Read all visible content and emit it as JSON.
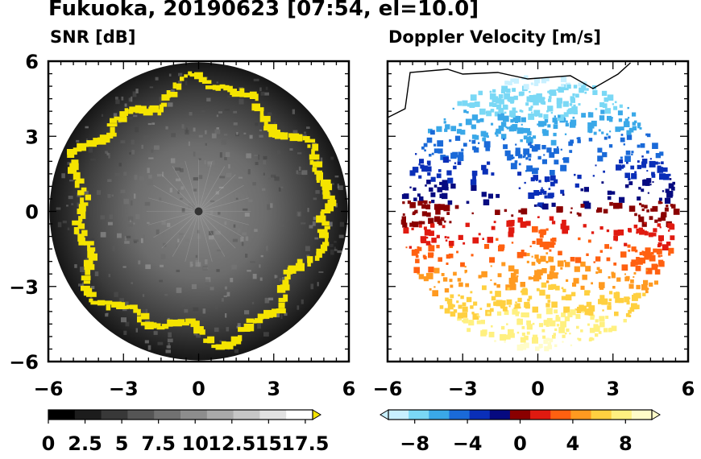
{
  "title": "Fukuoka, 20190623 [07:54, el=10.0]",
  "chart_data": [
    {
      "type": "heatmap",
      "title": "SNR [dB]",
      "xlim": [
        -6,
        6
      ],
      "ylim": [
        -6,
        6
      ],
      "x_ticks": [
        "−6",
        "−3",
        "0",
        "3",
        "6"
      ],
      "y_ticks": [
        "6",
        "3",
        "0",
        "−3",
        "−6"
      ],
      "colorbar": {
        "ticks": [
          "0",
          "2.5",
          "5",
          "7.5",
          "10",
          "12.5",
          "15",
          "17.5"
        ],
        "range": [
          0,
          18
        ],
        "extend": "max",
        "colors": [
          "#000000",
          "#1c1c1c",
          "#383838",
          "#555555",
          "#717171",
          "#8d8d8d",
          "#aaaaaa",
          "#c6c6c6",
          "#e2e2e2",
          "#ffffff"
        ],
        "over_color": "#f5e400"
      }
    },
    {
      "type": "heatmap",
      "title": "Doppler Velocity [m/s]",
      "xlim": [
        -6,
        6
      ],
      "ylim": [
        -6,
        6
      ],
      "x_ticks": [
        "−6",
        "−3",
        "0",
        "3",
        "6"
      ],
      "y_ticks": [],
      "colorbar": {
        "ticks": [
          "−8",
          "−4",
          "0",
          "4",
          "8"
        ],
        "range": [
          -10,
          10
        ],
        "extend": "both",
        "colors": [
          "#c8f0ff",
          "#7ad8f5",
          "#3aa8e8",
          "#1a6ad8",
          "#0a2fb8",
          "#060a80",
          "#8a0000",
          "#e01a10",
          "#ff6010",
          "#ff9a20",
          "#ffd040",
          "#fff080",
          "#fffcc8"
        ]
      }
    }
  ]
}
